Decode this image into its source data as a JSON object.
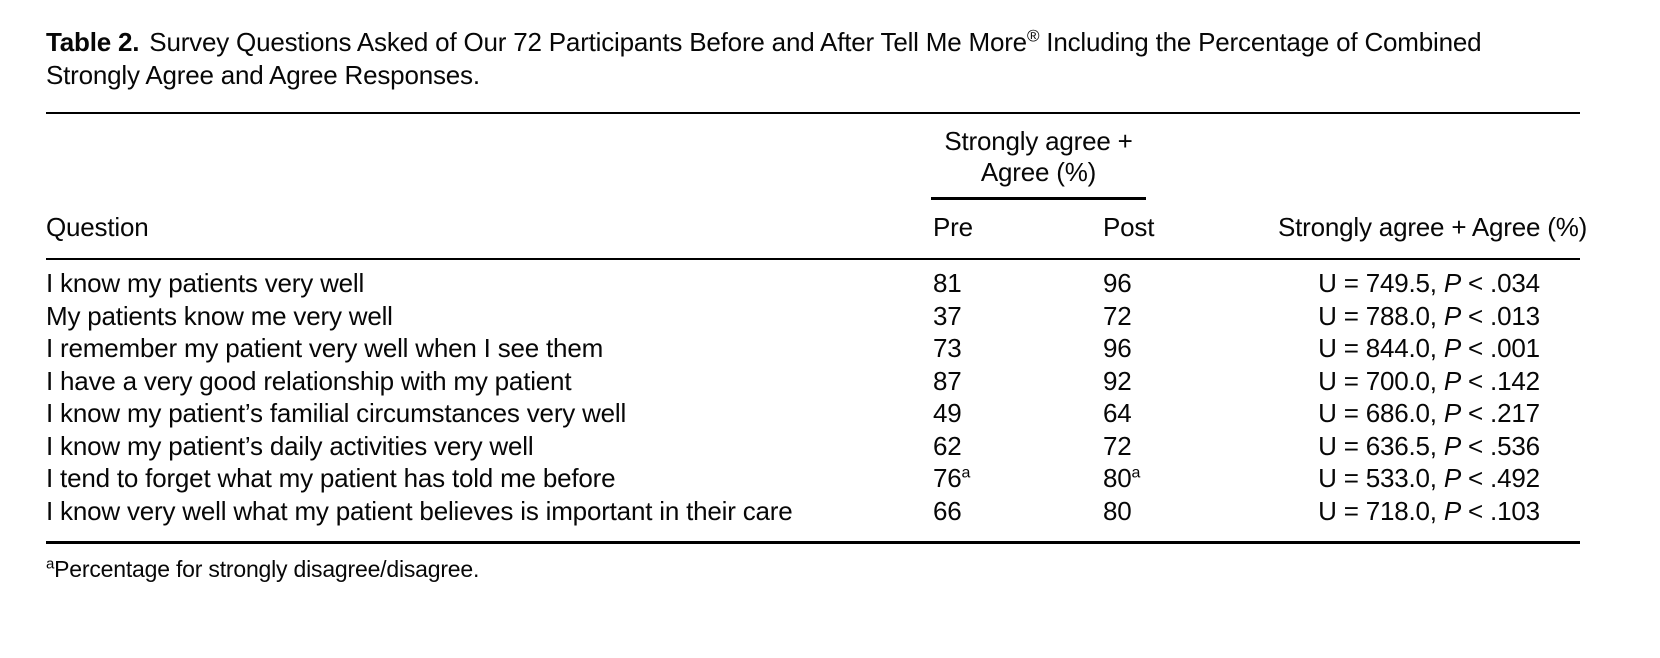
{
  "caption": {
    "label": "Table 2.",
    "text_before_sup": "Survey Questions Asked of Our 72 Participants Before and After Tell Me More",
    "sup": "®",
    "text_after_sup": " Including the Percentage of Combined Strongly Agree and Agree Responses."
  },
  "header": {
    "spanner_line1": "Strongly agree +",
    "spanner_line2": "Agree (%)",
    "columns": {
      "question": "Question",
      "pre": "Pre",
      "post": "Post",
      "stats": "Strongly agree + Agree (%)"
    }
  },
  "rows": [
    {
      "question": "I know my patients very well",
      "pre": "81",
      "pre_sup": "",
      "post": "96",
      "post_sup": "",
      "stat": {
        "u": "U = 749.5,",
        "p": "P",
        "rest": " < .034"
      }
    },
    {
      "question": "My patients know me very well",
      "pre": "37",
      "pre_sup": "",
      "post": "72",
      "post_sup": "",
      "stat": {
        "u": "U = 788.0,",
        "p": "P",
        "rest": " < .013"
      }
    },
    {
      "question": "I remember my patient very well when I see them",
      "pre": "73",
      "pre_sup": "",
      "post": "96",
      "post_sup": "",
      "stat": {
        "u": "U = 844.0,",
        "p": "P",
        "rest": " < .001"
      }
    },
    {
      "question": "I have a very good relationship with my patient",
      "pre": "87",
      "pre_sup": "",
      "post": "92",
      "post_sup": "",
      "stat": {
        "u": "U = 700.0,",
        "p": "P",
        "rest": " < .142"
      }
    },
    {
      "question": "I know my patient’s familial circumstances very well",
      "pre": "49",
      "pre_sup": "",
      "post": "64",
      "post_sup": "",
      "stat": {
        "u": "U = 686.0,",
        "p": "P",
        "rest": " < .217"
      }
    },
    {
      "question": "I know my patient’s daily activities very well",
      "pre": "62",
      "pre_sup": "",
      "post": "72",
      "post_sup": "",
      "stat": {
        "u": "U = 636.5,",
        "p": "P",
        "rest": " < .536"
      }
    },
    {
      "question": "I tend to forget what my patient has told me before",
      "pre": "76",
      "pre_sup": "a",
      "post": "80",
      "post_sup": "a",
      "stat": {
        "u": "U = 533.0,",
        "p": "P",
        "rest": " < .492"
      }
    },
    {
      "question": "I know very well what my patient believes is important in their care",
      "pre": "66",
      "pre_sup": "",
      "post": "80",
      "post_sup": "",
      "stat": {
        "u": "U = 718.0,",
        "p": "P",
        "rest": " < .103"
      }
    }
  ],
  "footnote": {
    "sup": "a",
    "text": "Percentage for strongly disagree/disagree."
  }
}
